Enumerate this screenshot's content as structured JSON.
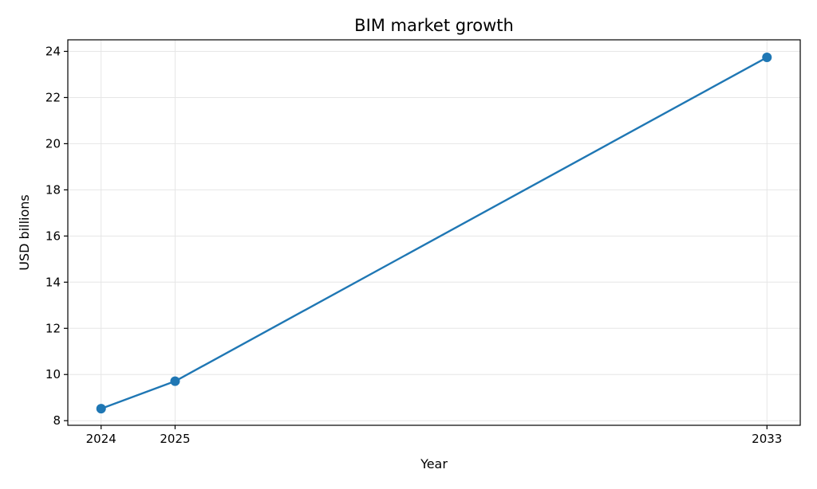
{
  "chart_data": {
    "type": "line",
    "title": "BIM market growth",
    "xlabel": "Year",
    "ylabel": "USD billions",
    "x": [
      2024,
      2025,
      2033
    ],
    "xticks": [
      "2024",
      "2025",
      "2033"
    ],
    "series": [
      {
        "values": [
          8.52,
          9.71,
          23.74
        ],
        "color": "#1f77b4"
      }
    ],
    "xlim": [
      2023.55,
      2033.45
    ],
    "ylim": [
      7.8,
      24.5
    ],
    "yticks": [
      8,
      10,
      12,
      14,
      16,
      18,
      20,
      22,
      24
    ],
    "grid": true,
    "marker": "circle"
  }
}
